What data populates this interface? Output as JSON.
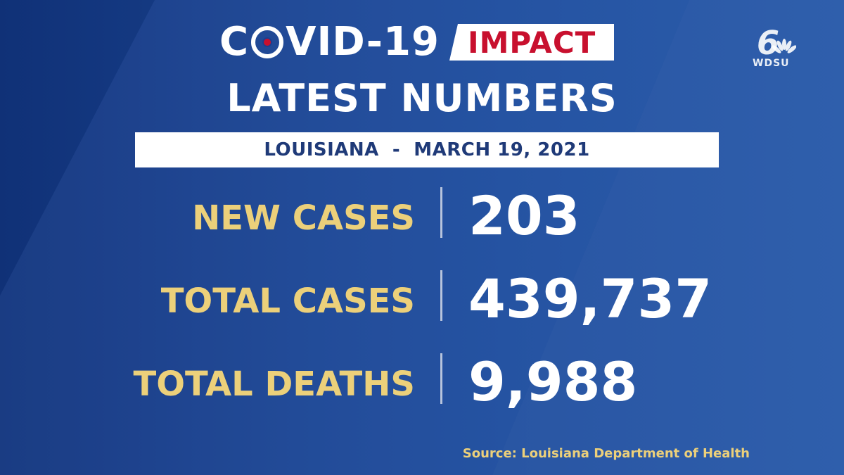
{
  "title": {
    "covid_left": "C",
    "covid_right": "VID-19",
    "impact": "IMPACT"
  },
  "headline": "LATEST NUMBERS",
  "subtitle_bar": "LOUISIANA  -  MARCH 19, 2021",
  "stats": [
    {
      "label": "NEW CASES",
      "value": "203"
    },
    {
      "label": "TOTAL CASES",
      "value": "439,737"
    },
    {
      "label": "TOTAL DEATHS",
      "value": "9,988"
    }
  ],
  "source": "Source: Louisiana Department of Health",
  "logo": {
    "number": "6",
    "station": "WDSU",
    "icon": "nbc-peacock-icon"
  },
  "colors": {
    "background": "#1d4c9c",
    "accent_gold": "#ecd07a",
    "impact_red": "#c8102e",
    "text_white": "#ffffff",
    "bar_text": "#1f3a78"
  }
}
